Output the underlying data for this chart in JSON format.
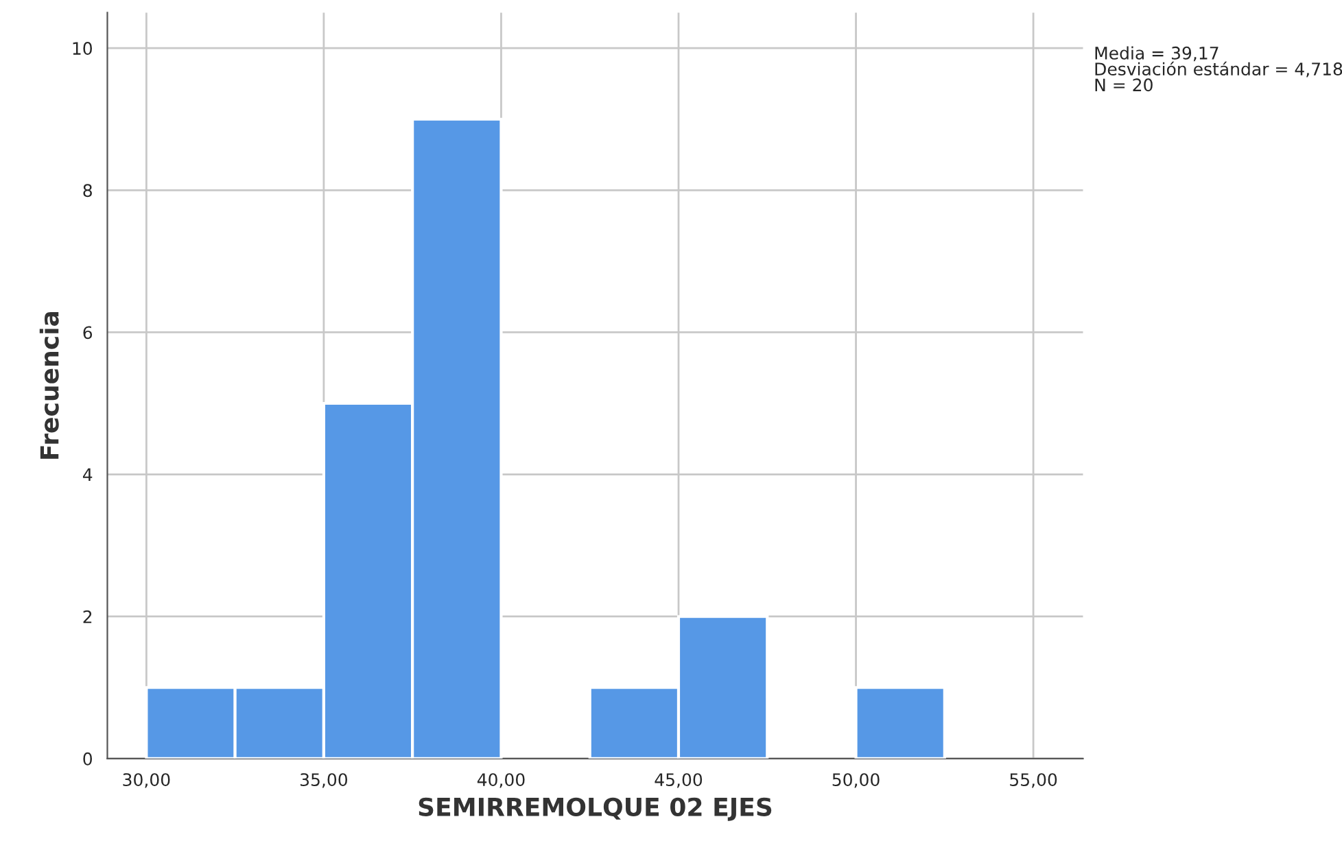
{
  "chart_data": {
    "type": "histogram",
    "xlabel": "SEMIRREMOLQUE 02 EJES",
    "ylabel": "Frecuencia",
    "bins": [
      30,
      32.5,
      35,
      37.5,
      40,
      42.5,
      45,
      47.5,
      50,
      52.5,
      55
    ],
    "values": [
      1,
      1,
      5,
      9,
      0,
      1,
      2,
      0,
      1,
      0
    ],
    "color": "#5698e6",
    "xlim": [
      28.9,
      56.4
    ],
    "ylim": [
      0,
      10.5
    ],
    "xticks": [
      {
        "value": 30,
        "label": "30,00"
      },
      {
        "value": 35,
        "label": "35,00"
      },
      {
        "value": 40,
        "label": "40,00"
      },
      {
        "value": 45,
        "label": "45,00"
      },
      {
        "value": 50,
        "label": "50,00"
      },
      {
        "value": 55,
        "label": "55,00"
      }
    ],
    "yticks": [
      0,
      2,
      4,
      6,
      8,
      10
    ],
    "grid": true,
    "annotations": [
      "Media = 39,17",
      "Desviación estándar = 4,718",
      "N = 20"
    ]
  }
}
